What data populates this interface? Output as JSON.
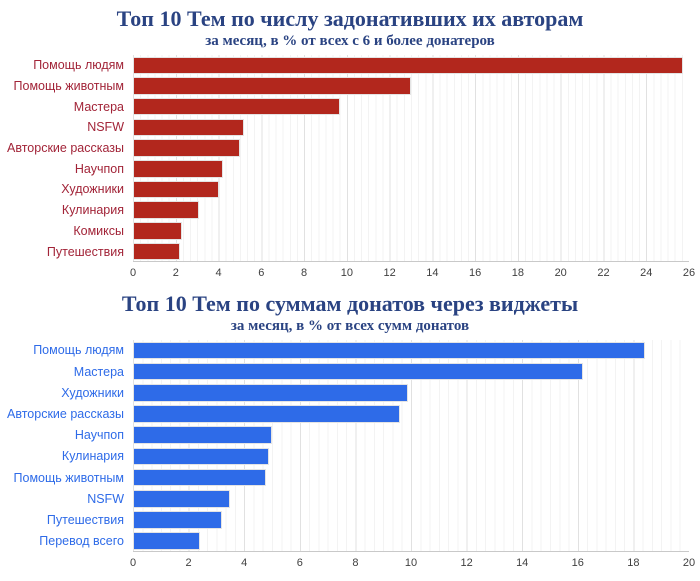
{
  "title_color": "#2a4382",
  "chart_data": [
    {
      "type": "bar",
      "orientation": "horizontal",
      "title": "Топ 10 Тем по числу задонативших их авторам",
      "subtitle": "за месяц, в % от всех с 6 и более донатеров",
      "categories": [
        "Помощь людям",
        "Помощь животным",
        "Мастера",
        "NSFW",
        "Авторские рассказы",
        "Научпоп",
        "Художники",
        "Кулинария",
        "Комиксы",
        "Путешествия"
      ],
      "values": [
        25.7,
        13.0,
        9.7,
        5.2,
        5.0,
        4.2,
        4.0,
        3.1,
        2.3,
        2.2
      ],
      "xlim": [
        0,
        26
      ],
      "tick_step": 2,
      "ticks": [
        0,
        2,
        4,
        6,
        8,
        10,
        12,
        14,
        16,
        18,
        20,
        22,
        24,
        26
      ],
      "bar_color": "#b2271d",
      "label_color": "#a22438",
      "grid": true,
      "legend": false
    },
    {
      "type": "bar",
      "orientation": "horizontal",
      "title": "Топ 10 Тем по суммам донатов через виджеты",
      "subtitle": "за месяц, в % от всех сумм донатов",
      "categories": [
        "Помощь людям",
        "Мастера",
        "Художники",
        "Авторские рассказы",
        "Научпоп",
        "Кулинария",
        "Помощь животным",
        "NSFW",
        "Путешествия",
        "Перевод всего"
      ],
      "values": [
        18.4,
        16.2,
        9.9,
        9.6,
        5.0,
        4.9,
        4.8,
        3.5,
        3.2,
        2.4
      ],
      "xlim": [
        0,
        20
      ],
      "tick_step": 2,
      "ticks": [
        0,
        2,
        4,
        6,
        8,
        10,
        12,
        14,
        16,
        18,
        20
      ],
      "bar_color": "#2e6be8",
      "label_color": "#2e6be8",
      "grid": true,
      "legend": false
    }
  ]
}
